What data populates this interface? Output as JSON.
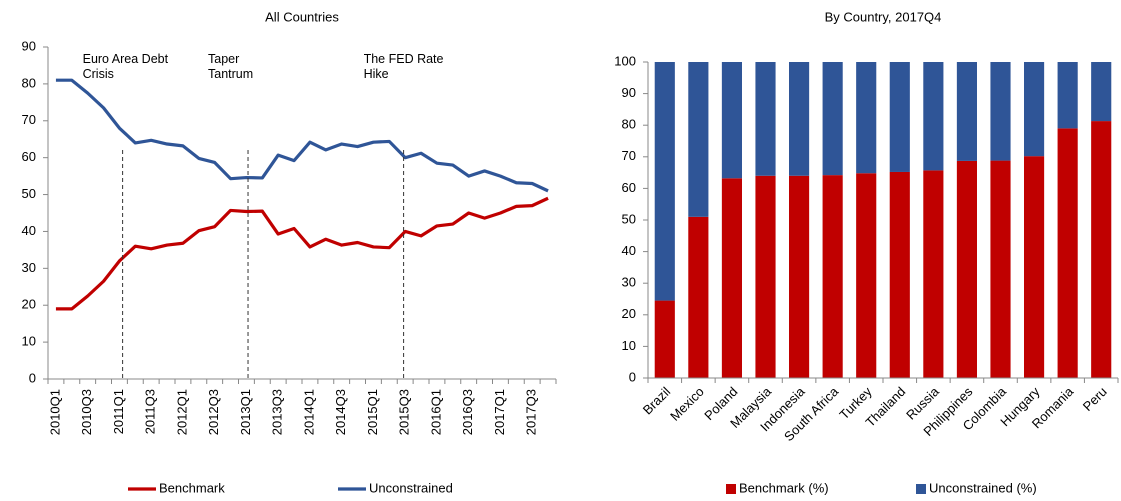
{
  "chart_data": [
    {
      "type": "line",
      "title": "All Countries",
      "categories": [
        "2010Q1",
        null,
        "2010Q3",
        null,
        "2011Q1",
        null,
        "2011Q3",
        null,
        "2012Q1",
        null,
        "2012Q3",
        null,
        "2013Q1",
        null,
        "2013Q3",
        null,
        "2014Q1",
        null,
        "2014Q3",
        null,
        "2015Q1",
        null,
        "2015Q3",
        null,
        "2016Q1",
        null,
        "2016Q3",
        null,
        "2017Q1",
        null,
        "2017Q3",
        null
      ],
      "series": [
        {
          "name": "Benchmark",
          "color": "#c00000",
          "values": [
            19,
            19,
            22.5,
            26.5,
            32,
            36,
            35.3,
            36.3,
            36.8,
            40.2,
            41.3,
            45.7,
            45.4,
            45.5,
            39.3,
            40.8,
            35.8,
            37.9,
            36.3,
            37,
            35.8,
            35.6,
            40,
            38.8,
            41.5,
            42,
            45,
            43.6,
            45,
            46.8,
            47,
            49
          ]
        },
        {
          "name": "Unconstrained",
          "color": "#2f5597",
          "values": [
            81,
            81,
            77.5,
            73.5,
            68,
            64,
            64.7,
            63.7,
            63.2,
            59.8,
            58.7,
            54.3,
            54.6,
            54.5,
            60.7,
            59.2,
            64.2,
            62.1,
            63.7,
            63,
            64.2,
            64.4,
            60,
            61.2,
            58.5,
            58,
            55,
            56.4,
            55,
            53.2,
            53,
            51
          ]
        }
      ],
      "annotations": [
        "Euro Area Debt Crisis",
        "Taper Tantrum",
        "The FED Rate Hike"
      ],
      "ylim": [
        0,
        90
      ],
      "yticks": [
        0,
        10,
        20,
        30,
        40,
        50,
        60,
        70,
        80,
        90
      ],
      "legend": "bottom"
    },
    {
      "type": "stacked_bar",
      "title": "By Country, 2017Q4",
      "categories": [
        "Brazil",
        "Mexico",
        "Poland",
        "Malaysia",
        "Indonesia",
        "South Africa",
        "Turkey",
        "Thailand",
        "Russia",
        "Philippines",
        "Colombia",
        "Hungary",
        "Romania",
        "Peru"
      ],
      "series": [
        {
          "name": "Benchmark (%)",
          "color": "#c00000",
          "values": [
            24.5,
            51,
            63.2,
            64,
            64,
            64.2,
            64.8,
            65.2,
            65.7,
            68.7,
            68.8,
            70.2,
            79,
            81.3
          ]
        },
        {
          "name": "Unconstrained (%)",
          "color": "#2f5597",
          "values": [
            75.5,
            49,
            36.8,
            36,
            36,
            35.8,
            35.2,
            34.8,
            34.3,
            31.3,
            31.2,
            29.8,
            21,
            18.7
          ]
        }
      ],
      "ylim": [
        0,
        100
      ],
      "yticks": [
        0,
        10,
        20,
        30,
        40,
        50,
        60,
        70,
        80,
        90,
        100
      ],
      "legend": "bottom"
    }
  ]
}
